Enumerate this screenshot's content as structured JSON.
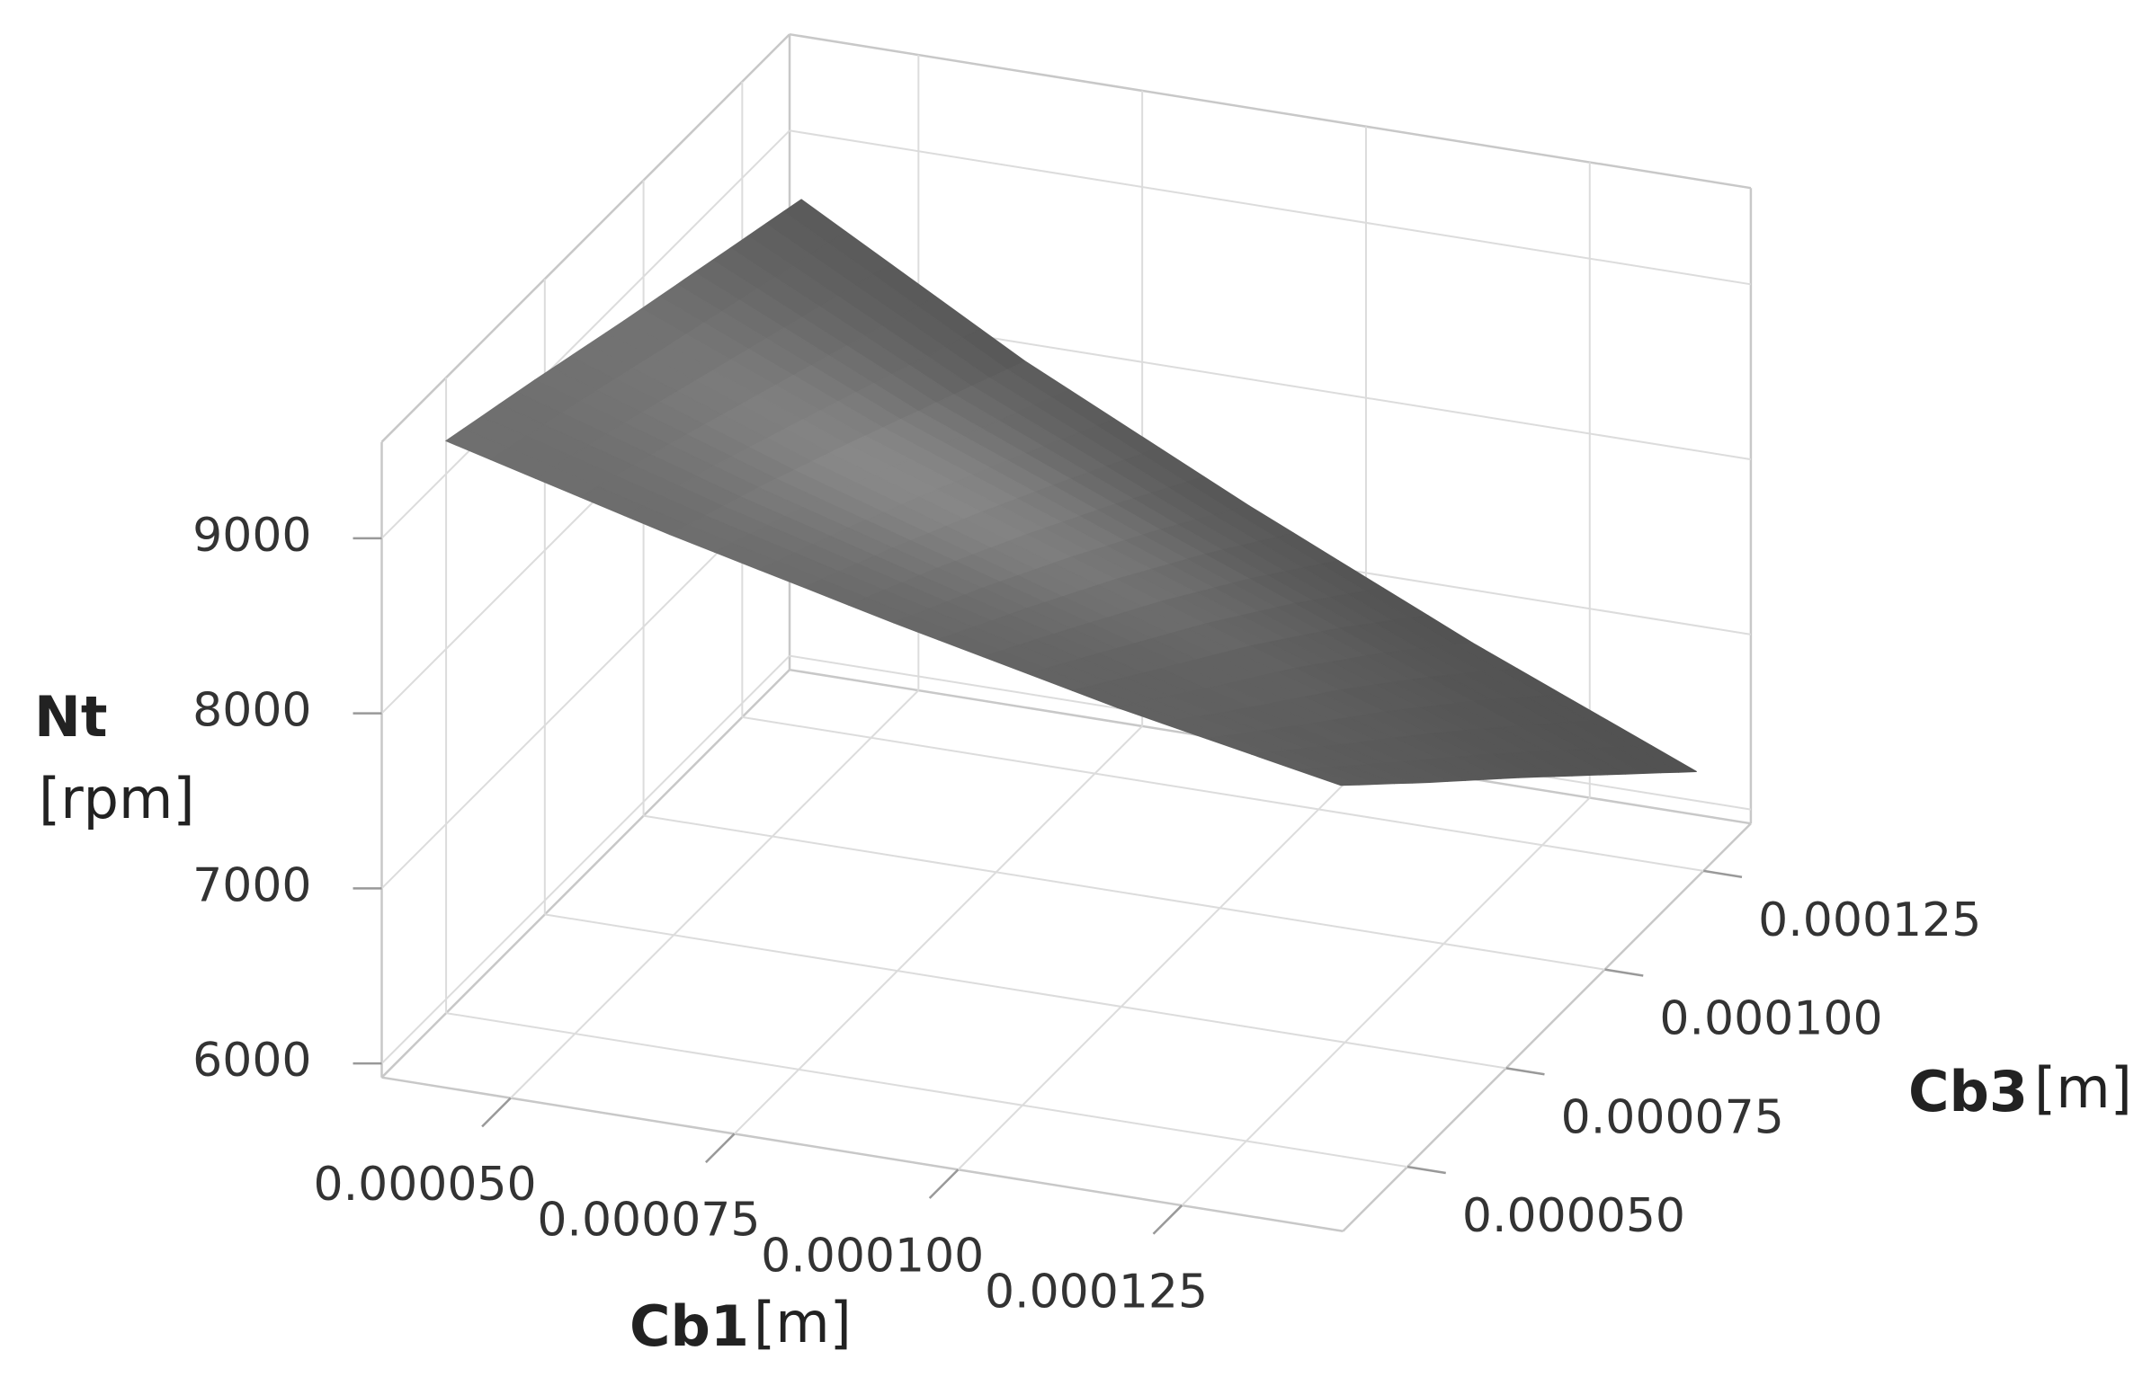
{
  "chart_data": {
    "type": "surface",
    "xlabel": "Cb1",
    "xunit": "[m]",
    "ylabel": "Cb3",
    "yunit": "[m]",
    "zlabel": "Nt",
    "zunit": "[rpm]",
    "x": [
      4e-05,
      6.5e-05,
      9e-05,
      0.000115,
      0.00014
    ],
    "y": [
      4e-05,
      6.25e-05,
      8.5e-05,
      0.0001075,
      0.00013
    ],
    "z": [
      [
        9450,
        9120,
        8820,
        8540,
        8300
      ],
      [
        9290,
        8880,
        8510,
        8140,
        7810
      ],
      [
        9120,
        8620,
        8180,
        7750,
        7330
      ],
      [
        8960,
        8350,
        7830,
        7330,
        6840
      ],
      [
        8800,
        8080,
        7460,
        6880,
        6350
      ]
    ],
    "color": "#a0a0a0",
    "xlim": [
      3.56e-05,
      0.000143
    ],
    "ylim": [
      3.37e-05,
      0.000137
    ],
    "zlim": [
      5920,
      9550
    ],
    "xticks": [
      {
        "value": 5e-05,
        "label": "0.000050"
      },
      {
        "value": 7.5e-05,
        "label": "0.000075"
      },
      {
        "value": 0.0001,
        "label": "0.000100"
      },
      {
        "value": 0.000125,
        "label": "0.000125"
      }
    ],
    "yticks": [
      {
        "value": 5e-05,
        "label": "0.000050"
      },
      {
        "value": 7.5e-05,
        "label": "0.000075"
      },
      {
        "value": 0.0001,
        "label": "0.000100"
      },
      {
        "value": 0.000125,
        "label": "0.000125"
      }
    ],
    "zticks": [
      6000,
      7000,
      8000,
      9000
    ],
    "grid": true
  }
}
